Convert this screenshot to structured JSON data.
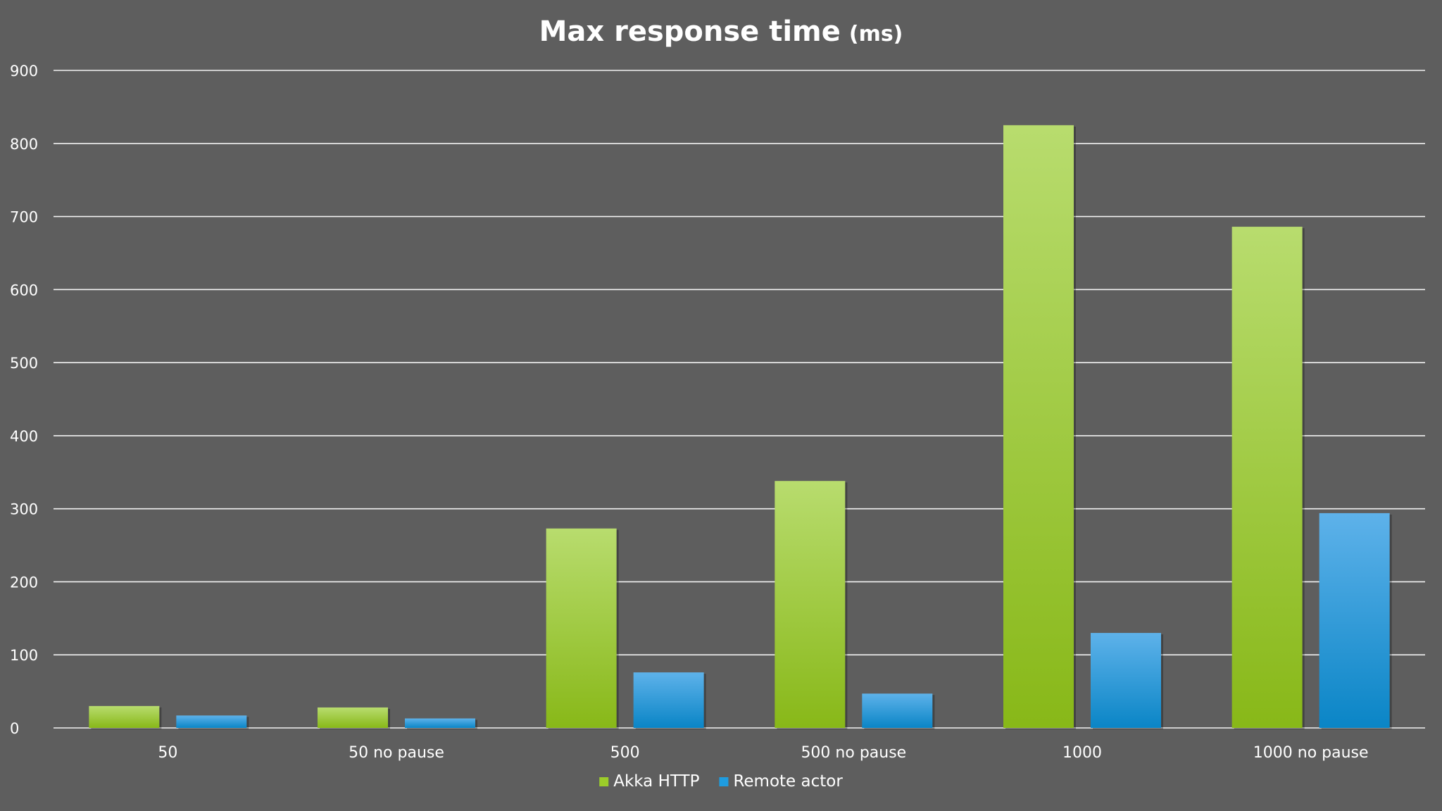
{
  "chart_data": {
    "type": "bar",
    "title": "Max response time",
    "title_unit": "(ms)",
    "xlabel": "",
    "ylabel": "",
    "ylim": [
      0,
      900
    ],
    "yticks": [
      0,
      100,
      200,
      300,
      400,
      500,
      600,
      700,
      800,
      900
    ],
    "grid": true,
    "legend_position": "bottom-center",
    "categories": [
      "50",
      "50 no pause",
      "500",
      "500 no pause",
      "1000",
      "1000 no pause"
    ],
    "series": [
      {
        "name": "Akka HTTP",
        "values": [
          30,
          28,
          273,
          338,
          825,
          686
        ],
        "color_top": "#b8dc6e",
        "color_bottom": "#88b818",
        "legend_color": "#9ccd2a"
      },
      {
        "name": "Remote actor",
        "values": [
          17,
          13,
          76,
          47,
          130,
          294
        ],
        "color_top": "#5eb2ea",
        "color_bottom": "#0a85c6",
        "legend_color": "#1e9ce0"
      }
    ],
    "colors": {
      "background": "#5e5e5e",
      "gridline": "#f2f2f2",
      "text": "#ffffff"
    }
  }
}
